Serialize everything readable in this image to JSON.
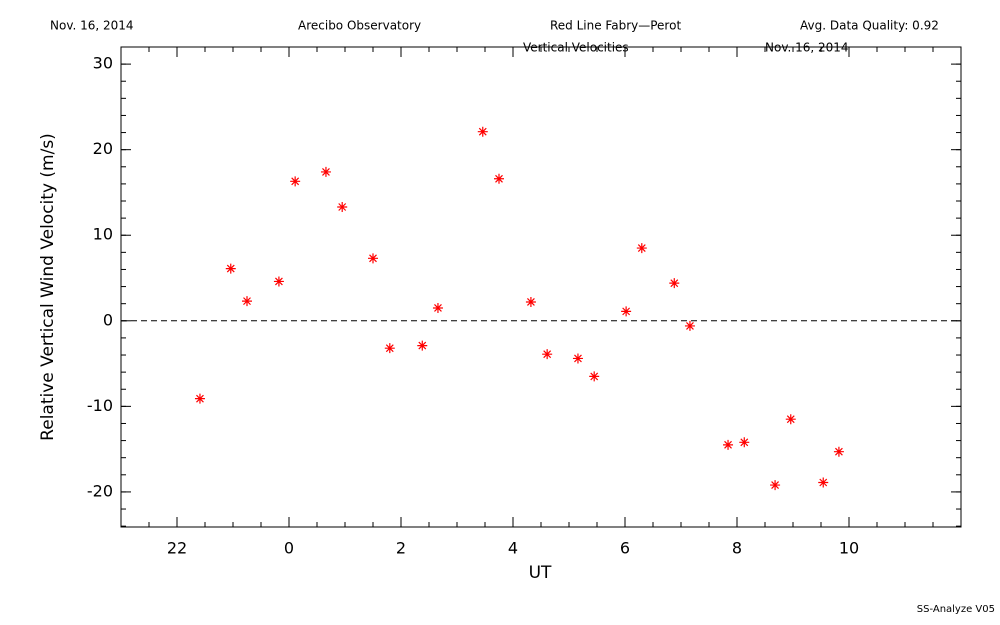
{
  "header": {
    "date": "Nov. 16, 2014",
    "observatory": "Arecibo Observatory",
    "instrument": "Red Line Fabry—Perot",
    "quality": "Avg. Data Quality: 0.92"
  },
  "chart_data": {
    "type": "scatter",
    "title": "Vertical Velocities",
    "subtitle": "Nov. 16, 2014",
    "x_label": "UT",
    "y_label": "Relative Vertical Wind Velocity (m/s)",
    "color": "#ff0000",
    "x": [
      -1.59,
      -1.04,
      -0.75,
      -0.18,
      0.11,
      0.66,
      0.95,
      1.5,
      1.8,
      2.38,
      2.66,
      3.46,
      3.75,
      4.32,
      4.61,
      5.16,
      5.45,
      6.02,
      6.3,
      6.88,
      7.16,
      7.84,
      8.13,
      8.68,
      8.96,
      9.54,
      9.82
    ],
    "values": [
      -9.1,
      6.1,
      2.3,
      4.6,
      16.3,
      17.4,
      13.3,
      7.3,
      -3.2,
      -2.9,
      1.5,
      22.1,
      16.6,
      2.2,
      -3.9,
      -4.4,
      -6.5,
      1.1,
      8.5,
      4.4,
      -0.6,
      -14.5,
      -14.2,
      -19.2,
      -11.5,
      -18.9,
      -15.3
    ],
    "xlim": [
      -3,
      12
    ],
    "ylim": [
      -24.1,
      32
    ],
    "xticks": [
      {
        "value": -2,
        "label": "22"
      },
      0,
      2,
      4,
      6,
      8,
      10
    ],
    "yticks": [
      -20,
      -10,
      0,
      10,
      20,
      30
    ]
  },
  "footer": "SS-Analyze V05"
}
